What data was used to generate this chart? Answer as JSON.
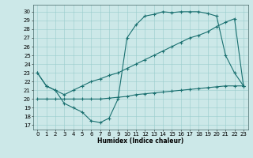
{
  "xlabel": "Humidex (Indice chaleur)",
  "background_color": "#cce8e8",
  "grid_color": "#99cccc",
  "line_color": "#1a7070",
  "xlim": [
    -0.5,
    23.5
  ],
  "ylim": [
    16.5,
    30.8
  ],
  "yticks": [
    17,
    18,
    19,
    20,
    21,
    22,
    23,
    24,
    25,
    26,
    27,
    28,
    29,
    30
  ],
  "xticks": [
    0,
    1,
    2,
    3,
    4,
    5,
    6,
    7,
    8,
    9,
    10,
    11,
    12,
    13,
    14,
    15,
    16,
    17,
    18,
    19,
    20,
    21,
    22,
    23
  ],
  "line1_x": [
    0,
    1,
    2,
    3,
    4,
    5,
    6,
    7,
    8,
    9,
    10,
    11,
    12,
    13,
    14,
    15,
    16,
    17,
    18,
    19,
    20,
    21,
    22,
    23
  ],
  "line1_y": [
    23,
    21.5,
    21,
    19.5,
    19,
    18.5,
    17.5,
    17.3,
    17.8,
    20.0,
    27.0,
    28.5,
    29.5,
    29.7,
    30.0,
    29.9,
    30.0,
    30.0,
    30.0,
    29.8,
    29.5,
    25.0,
    23.0,
    21.5
  ],
  "line2_x": [
    0,
    1,
    2,
    3,
    4,
    5,
    6,
    7,
    8,
    9,
    10,
    11,
    12,
    13,
    14,
    15,
    16,
    17,
    18,
    19,
    20,
    21,
    22,
    23
  ],
  "line2_y": [
    23,
    21.5,
    21,
    20.5,
    21.0,
    21.5,
    22.0,
    22.3,
    22.7,
    23.0,
    23.5,
    24.0,
    24.5,
    25.0,
    25.5,
    26.0,
    26.5,
    27.0,
    27.3,
    27.7,
    28.3,
    28.8,
    29.2,
    21.5
  ],
  "line3_x": [
    0,
    1,
    2,
    3,
    4,
    5,
    6,
    7,
    8,
    9,
    10,
    11,
    12,
    13,
    14,
    15,
    16,
    17,
    18,
    19,
    20,
    21,
    22,
    23
  ],
  "line3_y": [
    20.0,
    20.0,
    20.0,
    20.0,
    20.0,
    20.0,
    20.0,
    20.0,
    20.1,
    20.2,
    20.3,
    20.5,
    20.6,
    20.7,
    20.8,
    20.9,
    21.0,
    21.1,
    21.2,
    21.3,
    21.4,
    21.5,
    21.5,
    21.5
  ],
  "tick_fontsize": 5,
  "xlabel_fontsize": 5.5,
  "marker_size": 3,
  "linewidth": 0.8
}
